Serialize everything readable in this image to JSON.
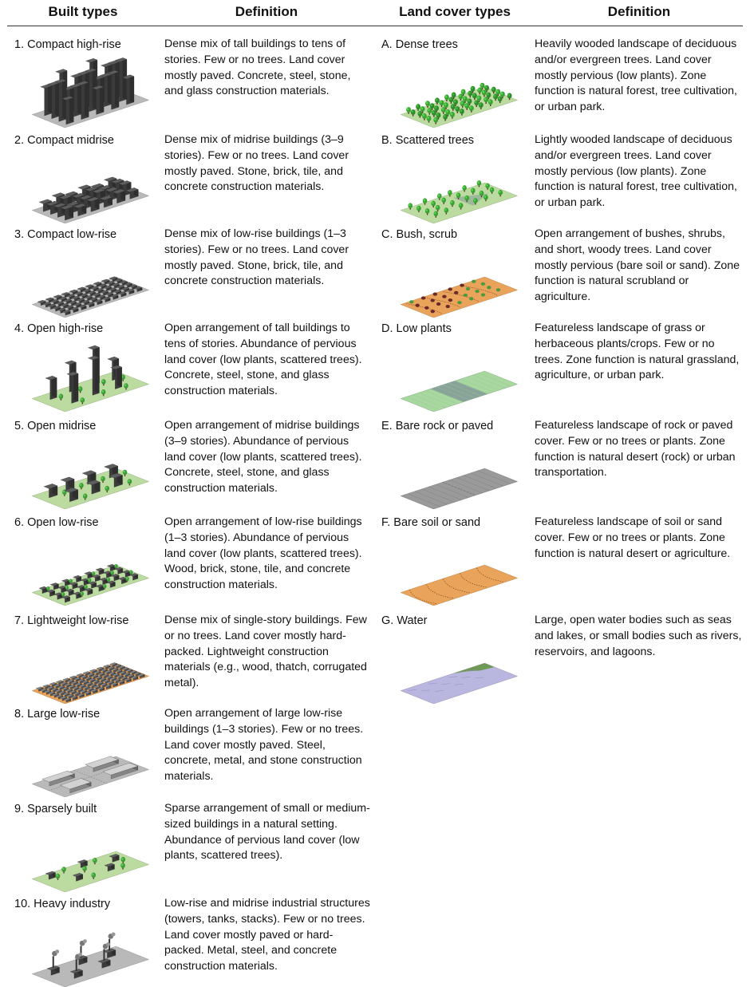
{
  "headers": {
    "built_types": "Built types",
    "built_definition": "Definition",
    "land_cover_types": "Land cover types",
    "land_definition": "Definition"
  },
  "built": [
    {
      "name": "1. Compact high-rise",
      "definition": "Dense mix of tall buildings to tens of stories. Few or no trees. Land cover mostly paved. Concrete, steel, stone, and glass construction materials.",
      "icon": "compact-high-rise-illustration"
    },
    {
      "name": "2. Compact midrise",
      "definition": "Dense mix of midrise buildings (3–9 stories). Few or no trees. Land cover mostly paved. Stone, brick, tile, and concrete construction materials.",
      "icon": "compact-midrise-illustration"
    },
    {
      "name": "3. Compact low-rise",
      "definition": "Dense mix of low-rise buildings (1–3 stories). Few or no trees. Land cover mostly paved. Stone, brick, tile, and concrete construction materials.",
      "icon": "compact-low-rise-illustration"
    },
    {
      "name": "4. Open high-rise",
      "definition": "Open arrangement of tall buildings to tens of stories. Abundance of pervious land cover (low plants, scattered trees). Concrete, steel, stone, and glass construction materials.",
      "icon": "open-high-rise-illustration"
    },
    {
      "name": "5. Open midrise",
      "definition": "Open arrangement of midrise buildings (3–9 stories). Abundance of pervious land cover (low plants, scattered trees). Concrete, steel, stone, and glass construction materials.",
      "icon": "open-midrise-illustration"
    },
    {
      "name": "6. Open low-rise",
      "definition": "Open arrangement of low-rise buildings (1–3 stories). Abundance of pervious land cover (low plants, scattered trees). Wood, brick, stone, tile, and concrete construction materials.",
      "icon": "open-low-rise-illustration"
    },
    {
      "name": "7. Lightweight low-rise",
      "definition": "Dense mix of single-story buildings. Few or no trees. Land cover mostly hard-packed. Lightweight construction materials (e.g., wood, thatch, corrugated metal).",
      "icon": "lightweight-low-rise-illustration"
    },
    {
      "name": "8. Large low-rise",
      "definition": "Open arrangement of large low-rise buildings (1–3 stories). Few or no trees. Land cover mostly paved. Steel, concrete, metal, and stone construction materials.",
      "icon": "large-low-rise-illustration"
    },
    {
      "name": "9. Sparsely built",
      "definition": "Sparse arrangement of small or medium-sized buildings in a natural setting. Abundance of pervious land cover (low plants, scattered trees).",
      "icon": "sparsely-built-illustration"
    },
    {
      "name": "10. Heavy industry",
      "definition": "Low-rise and midrise industrial structures (towers, tanks, stacks). Few or no trees. Land cover mostly paved or hard-packed. Metal, steel, and concrete construction materials.",
      "icon": "heavy-industry-illustration"
    }
  ],
  "land": [
    {
      "name": "A. Dense trees",
      "definition": "Heavily wooded landscape of deciduous and/or evergreen trees. Land cover mostly pervious (low plants). Zone function is natural forest, tree cultivation, or urban park.",
      "icon": "dense-trees-illustration"
    },
    {
      "name": "B. Scattered trees",
      "definition": "Lightly wooded landscape of deciduous and/or evergreen trees. Land cover mostly pervious (low plants). Zone function is natural forest, tree cultivation, or urban park.",
      "icon": "scattered-trees-illustration"
    },
    {
      "name": "C. Bush, scrub",
      "definition": "Open arrangement of bushes, shrubs, and short, woody trees. Land cover mostly pervious (bare soil or sand). Zone function is natural scrubland or agriculture.",
      "icon": "bush-scrub-illustration"
    },
    {
      "name": "D. Low plants",
      "definition": "Featureless landscape of grass or herbaceous plants/crops. Few or no trees. Zone function is natural grassland, agriculture, or urban park.",
      "icon": "low-plants-illustration"
    },
    {
      "name": "E. Bare rock or paved",
      "definition": "Featureless landscape of rock or paved cover. Few or no trees or plants. Zone function is natural desert (rock) or urban transportation.",
      "icon": "bare-rock-paved-illustration"
    },
    {
      "name": "F. Bare soil or sand",
      "definition": "Featureless landscape of soil or sand cover. Few or no trees or plants. Zone function is natural desert or agriculture.",
      "icon": "bare-soil-sand-illustration"
    },
    {
      "name": "G. Water",
      "definition": "Large, open water bodies such as seas and lakes, or small bodies such as rivers, reservoirs, and lagoons.",
      "icon": "water-illustration"
    }
  ],
  "colors": {
    "paved": "#b9b9b9",
    "building": "#4a4a4a",
    "grass": "#bcdba0",
    "tree": "#3f9a3a",
    "soil": "#eaa35a",
    "water": "#b9b6df"
  }
}
